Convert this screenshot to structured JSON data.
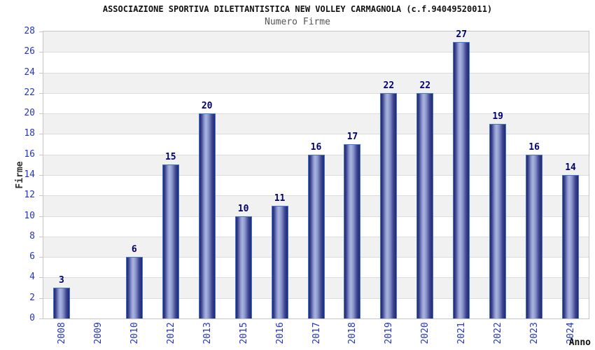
{
  "header": {
    "title": "ASSOCIAZIONE SPORTIVA DILETTANTISTICA NEW VOLLEY CARMAGNOLA (c.f.94049520011)",
    "subtitle": "Numero Firme"
  },
  "chart_data": {
    "type": "bar",
    "title": "ASSOCIAZIONE SPORTIVA DILETTANTISTICA NEW VOLLEY CARMAGNOLA (c.f.94049520011)",
    "subtitle": "Numero Firme",
    "xlabel": "Anno",
    "ylabel": "Firme",
    "categories": [
      "2008",
      "2009",
      "2010",
      "2012",
      "2013",
      "2015",
      "2016",
      "2017",
      "2018",
      "2019",
      "2020",
      "2021",
      "2022",
      "2023",
      "2024"
    ],
    "values": [
      3,
      0,
      6,
      15,
      20,
      10,
      11,
      16,
      17,
      22,
      22,
      27,
      19,
      16,
      14
    ],
    "ylim": [
      0,
      28
    ],
    "ytick_step": 2,
    "yticks": [
      0,
      2,
      4,
      6,
      8,
      10,
      12,
      14,
      16,
      18,
      20,
      22,
      24,
      26,
      28
    ],
    "grid": "horizontal-bands",
    "legend": "none",
    "colors": {
      "bar_dark": "#23286c",
      "bar_mid": "#8b96cc",
      "bar_light": "#aab4e0",
      "bar_border": "#3f74d9",
      "value_label": "#00006e",
      "axis_tick_text": "#2233cc",
      "band_gray": "#f1f1f1",
      "grid_line": "#dcdcdc",
      "plot_border": "#c6c6c6",
      "title": "#111111",
      "subtitle": "#555555",
      "ylabel": "#333333",
      "xlabel": "#111111"
    }
  }
}
